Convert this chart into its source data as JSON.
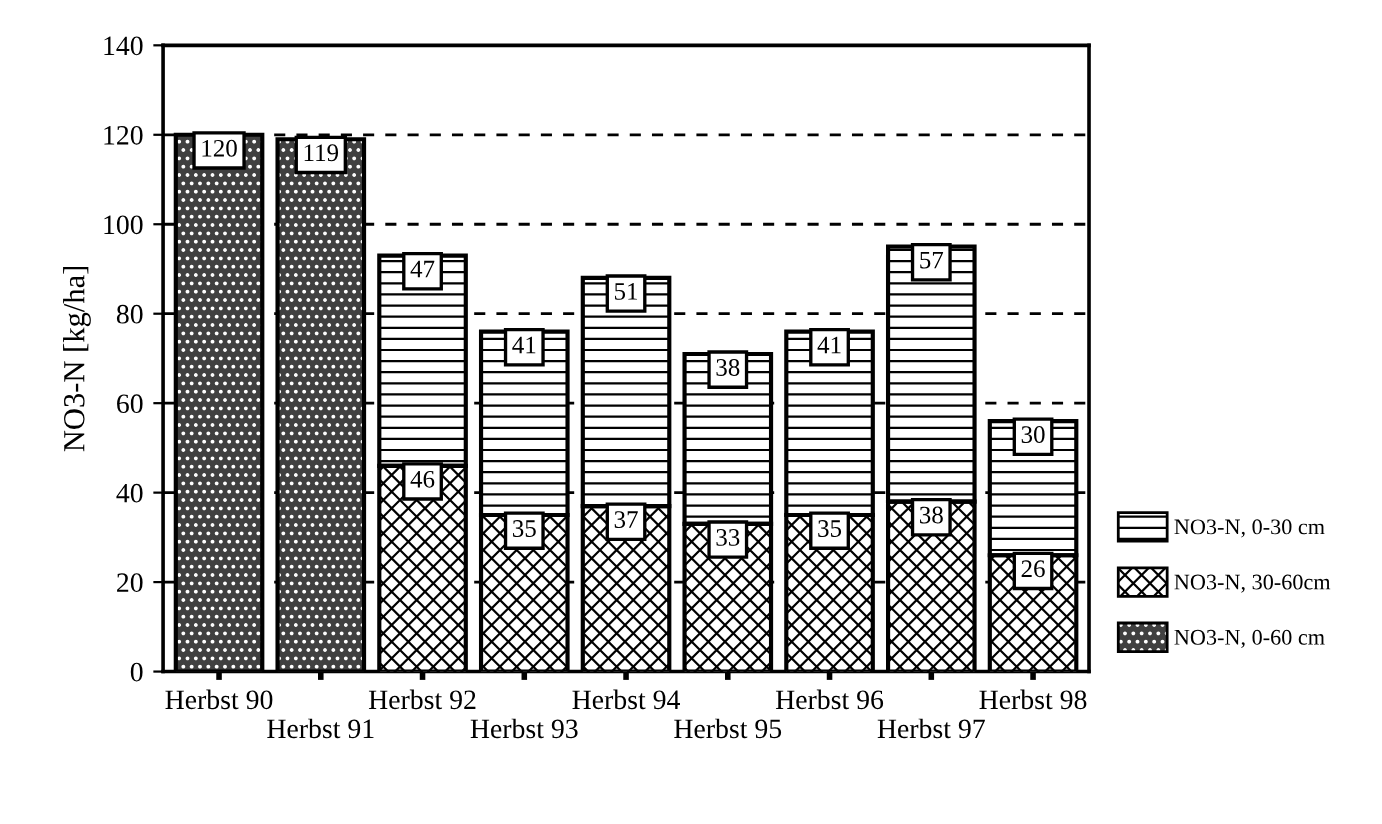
{
  "chart_data": {
    "type": "bar",
    "stacked": true,
    "ylabel": "NO3-N [kg/ha]",
    "categories": [
      "Herbst 90",
      "Herbst 91",
      "Herbst 92",
      "Herbst 93",
      "Herbst 94",
      "Herbst 95",
      "Herbst 96",
      "Herbst 97",
      "Herbst 98"
    ],
    "series": [
      {
        "name": "NO3-N, 0-60 cm",
        "color": "#404040",
        "values": [
          120,
          119,
          null,
          null,
          null,
          null,
          null,
          null,
          null
        ]
      },
      {
        "name": "NO3-N, 30-60cm",
        "color": "#000000",
        "values": [
          null,
          null,
          46,
          35,
          37,
          33,
          35,
          38,
          26
        ]
      },
      {
        "name": "NO3-N, 0-30 cm",
        "color": "#000000",
        "values": [
          null,
          null,
          47,
          41,
          51,
          38,
          41,
          57,
          30
        ]
      }
    ],
    "ylim": [
      0,
      140
    ],
    "yticks": [
      0,
      20,
      40,
      60,
      80,
      100,
      120,
      140
    ],
    "grid": "y",
    "legend": "bottom right",
    "data_labels": true
  }
}
